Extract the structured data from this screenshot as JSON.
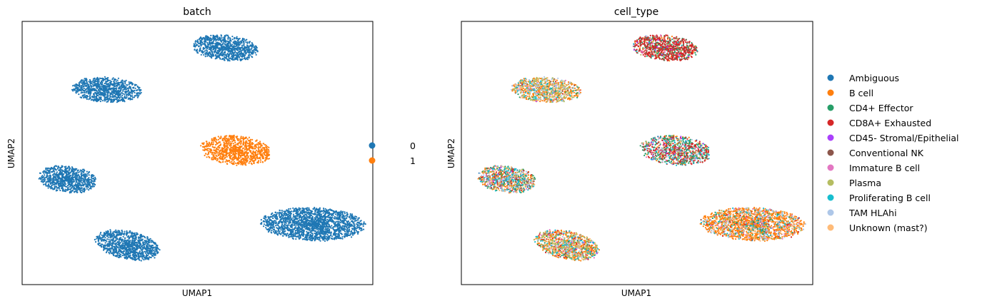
{
  "chart_data": [
    {
      "type": "scatter",
      "title": "batch",
      "xlabel": "UMAP1",
      "ylabel": "UMAP2",
      "xlim": [
        0,
        10
      ],
      "ylim": [
        0,
        10
      ],
      "legend_position": "right",
      "categories": [
        "0",
        "1"
      ],
      "colors": [
        "#1f77b4",
        "#ff7f0e"
      ],
      "clusters": [
        {
          "name": "top",
          "center": [
            5.8,
            9.0
          ],
          "radii": [
            1.95,
            1.0
          ],
          "angle": -8,
          "n": 900,
          "mix": [
            1,
            0
          ]
        },
        {
          "name": "upper-left",
          "center": [
            2.4,
            7.4
          ],
          "radii": [
            2.05,
            1.0
          ],
          "angle": -5,
          "n": 900,
          "mix": [
            1,
            0
          ]
        },
        {
          "name": "middle",
          "center": [
            6.1,
            5.1
          ],
          "radii": [
            2.1,
            1.15
          ],
          "angle": -8,
          "n": 950,
          "mix": [
            0,
            1
          ]
        },
        {
          "name": "left",
          "center": [
            1.3,
            4.0
          ],
          "radii": [
            1.7,
            1.05
          ],
          "angle": -10,
          "n": 850,
          "mix": [
            1,
            0
          ]
        },
        {
          "name": "lower-right",
          "center": [
            8.3,
            2.3
          ],
          "radii": [
            3.05,
            1.3
          ],
          "angle": -3,
          "n": 1900,
          "mix": [
            1,
            0
          ]
        },
        {
          "name": "bottom",
          "center": [
            3.0,
            1.5
          ],
          "radii": [
            1.95,
            1.1
          ],
          "angle": -18,
          "n": 1000,
          "mix": [
            1,
            0
          ]
        }
      ]
    },
    {
      "type": "scatter",
      "title": "cell_type",
      "xlabel": "UMAP1",
      "ylabel": "UMAP2",
      "xlim": [
        0,
        10
      ],
      "ylim": [
        0,
        10
      ],
      "legend_position": "right",
      "categories": [
        "Ambiguous",
        "B cell",
        "CD4+ Effector",
        "CD8A+ Exhausted",
        "CD45- Stromal/Epithelial",
        "Conventional NK",
        "Immature B cell",
        "Plasma",
        "Proliferating B cell",
        "TAM HLAhi",
        "Unknown (mast?)"
      ],
      "colors": [
        "#1f77b4",
        "#ff7f0e",
        "#279e68",
        "#d62728",
        "#aa40fc",
        "#8c564b",
        "#e377c2",
        "#b5bd61",
        "#17becf",
        "#aec7e8",
        "#ffbb78"
      ],
      "clusters": [
        {
          "name": "top",
          "center": [
            5.8,
            9.0
          ],
          "radii": [
            1.95,
            1.0
          ],
          "angle": -8,
          "n": 900,
          "mix": [
            0,
            0.05,
            0.25,
            0.55,
            0.02,
            0.06,
            0.01,
            0.02,
            0.02,
            0.01,
            0.01
          ]
        },
        {
          "name": "upper-left",
          "center": [
            2.4,
            7.4
          ],
          "radii": [
            2.05,
            1.0
          ],
          "angle": -5,
          "n": 900,
          "mix": [
            0.02,
            0.4,
            0.04,
            0.01,
            0.01,
            0.01,
            0.04,
            0.24,
            0.07,
            0.1,
            0.06
          ]
        },
        {
          "name": "middle",
          "center": [
            6.1,
            5.1
          ],
          "radii": [
            2.1,
            1.15
          ],
          "angle": -8,
          "n": 950,
          "mix": [
            0.04,
            0.1,
            0.34,
            0.24,
            0.02,
            0.05,
            0.04,
            0.04,
            0.06,
            0.04,
            0.03
          ]
        },
        {
          "name": "left",
          "center": [
            1.3,
            4.0
          ],
          "radii": [
            1.7,
            1.05
          ],
          "angle": -10,
          "n": 850,
          "mix": [
            0.05,
            0.25,
            0.16,
            0.1,
            0.01,
            0.04,
            0.05,
            0.08,
            0.12,
            0.08,
            0.06
          ]
        },
        {
          "name": "lower-right",
          "center": [
            8.3,
            2.3
          ],
          "radii": [
            3.05,
            1.3
          ],
          "angle": -3,
          "n": 1900,
          "mix": [
            0.02,
            0.66,
            0.04,
            0.03,
            0.0,
            0.01,
            0.04,
            0.03,
            0.04,
            0.08,
            0.05
          ]
        },
        {
          "name": "bottom",
          "center": [
            3.0,
            1.5
          ],
          "radii": [
            1.95,
            1.1
          ],
          "angle": -18,
          "n": 1000,
          "mix": [
            0.03,
            0.38,
            0.06,
            0.07,
            0.01,
            0.02,
            0.04,
            0.24,
            0.06,
            0.04,
            0.05
          ]
        }
      ]
    }
  ]
}
